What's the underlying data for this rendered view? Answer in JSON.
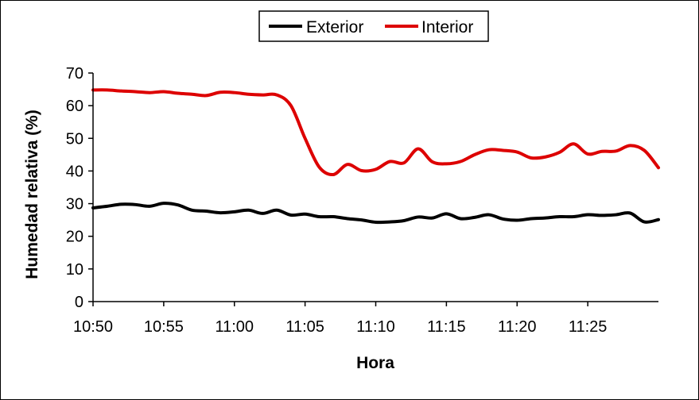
{
  "chart_data": {
    "type": "line",
    "title": "",
    "xlabel": "Hora",
    "ylabel": "Humedad relativa (%)",
    "x_unit": "minutes after 10:50",
    "xlim": [
      0,
      40
    ],
    "ylim": [
      0,
      70
    ],
    "y_ticks": [
      0,
      10,
      20,
      30,
      40,
      50,
      60,
      70
    ],
    "x_ticks": [
      {
        "value": 0,
        "label": "10:50"
      },
      {
        "value": 5,
        "label": "10:55"
      },
      {
        "value": 10,
        "label": "11:00"
      },
      {
        "value": 15,
        "label": "11:05"
      },
      {
        "value": 20,
        "label": "11:10"
      },
      {
        "value": 25,
        "label": "11:15"
      },
      {
        "value": 30,
        "label": "11:20"
      },
      {
        "value": 35,
        "label": "11:25"
      }
    ],
    "grid": false,
    "legend": "top-center",
    "series": [
      {
        "name": "Exterior",
        "color": "#000000",
        "points": [
          [
            0,
            28.7
          ],
          [
            1,
            29.2
          ],
          [
            2,
            29.8
          ],
          [
            3,
            29.7
          ],
          [
            4,
            29.2
          ],
          [
            5,
            30.1
          ],
          [
            6,
            29.6
          ],
          [
            7,
            28.0
          ],
          [
            8,
            27.7
          ],
          [
            9,
            27.2
          ],
          [
            10,
            27.5
          ],
          [
            11,
            28.0
          ],
          [
            12,
            27.0
          ],
          [
            13,
            28.0
          ],
          [
            14,
            26.5
          ],
          [
            15,
            26.8
          ],
          [
            16,
            26.0
          ],
          [
            17,
            26.0
          ],
          [
            18,
            25.4
          ],
          [
            19,
            25.0
          ],
          [
            20,
            24.3
          ],
          [
            21,
            24.4
          ],
          [
            22,
            24.8
          ],
          [
            23,
            25.9
          ],
          [
            24,
            25.6
          ],
          [
            25,
            26.9
          ],
          [
            26,
            25.4
          ],
          [
            27,
            25.8
          ],
          [
            28,
            26.6
          ],
          [
            29,
            25.3
          ],
          [
            30,
            24.9
          ],
          [
            31,
            25.4
          ],
          [
            32,
            25.6
          ],
          [
            33,
            26.0
          ],
          [
            34,
            26.0
          ],
          [
            35,
            26.6
          ],
          [
            36,
            26.4
          ],
          [
            37,
            26.6
          ],
          [
            38,
            27.1
          ],
          [
            39,
            24.4
          ],
          [
            40,
            25.1
          ]
        ]
      },
      {
        "name": "Interior",
        "color": "#dd0000",
        "points": [
          [
            0,
            64.8
          ],
          [
            1,
            64.8
          ],
          [
            2,
            64.5
          ],
          [
            3,
            64.3
          ],
          [
            4,
            64.0
          ],
          [
            5,
            64.3
          ],
          [
            6,
            63.8
          ],
          [
            7,
            63.5
          ],
          [
            8,
            63.1
          ],
          [
            9,
            64.1
          ],
          [
            10,
            64.0
          ],
          [
            11,
            63.5
          ],
          [
            12,
            63.3
          ],
          [
            13,
            63.3
          ],
          [
            14,
            60.0
          ],
          [
            15,
            50.0
          ],
          [
            16,
            41.2
          ],
          [
            17,
            38.9
          ],
          [
            18,
            42.0
          ],
          [
            19,
            40.1
          ],
          [
            20,
            40.5
          ],
          [
            21,
            42.9
          ],
          [
            22,
            42.5
          ],
          [
            23,
            46.8
          ],
          [
            24,
            42.8
          ],
          [
            25,
            42.2
          ],
          [
            26,
            42.9
          ],
          [
            27,
            45.0
          ],
          [
            28,
            46.5
          ],
          [
            29,
            46.3
          ],
          [
            30,
            45.8
          ],
          [
            31,
            44.0
          ],
          [
            32,
            44.3
          ],
          [
            33,
            45.7
          ],
          [
            34,
            48.3
          ],
          [
            35,
            45.2
          ],
          [
            36,
            46.0
          ],
          [
            37,
            46.1
          ],
          [
            38,
            47.8
          ],
          [
            39,
            46.3
          ],
          [
            40,
            41.0
          ]
        ]
      }
    ]
  }
}
